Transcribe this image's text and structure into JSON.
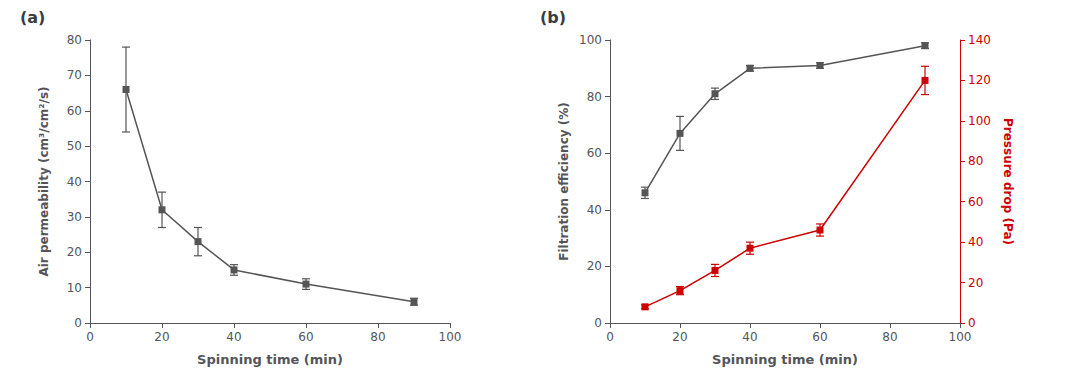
{
  "chart_data": [
    {
      "type": "line",
      "title": "(a)",
      "xlabel": "Spinning time (min)",
      "ylabel": "Air permeability (cm³/cm²/s)",
      "x": [
        10,
        20,
        30,
        40,
        60,
        90
      ],
      "series": [
        {
          "color": "#555555",
          "marker": "square",
          "line_style": "solid",
          "values": [
            66,
            32,
            23,
            15,
            11,
            6
          ],
          "errors": [
            12,
            5,
            4,
            1.5,
            1.5,
            1
          ]
        }
      ],
      "xlim": [
        0,
        100
      ],
      "xticks": [
        0,
        20,
        40,
        60,
        80,
        100
      ],
      "ylim": [
        0,
        80
      ],
      "yticks": [
        0,
        10,
        20,
        30,
        40,
        50,
        60,
        70,
        80
      ],
      "grid": false
    },
    {
      "type": "line",
      "title": "(b)",
      "xlabel": "Spinning time (min)",
      "ylabel": "Filtration efficiency (%)",
      "y2label": "Pressure drop (Pa)",
      "x": [
        10,
        20,
        30,
        40,
        60,
        90
      ],
      "series": [
        {
          "color": "#555555",
          "marker": "square",
          "line_style": "solid",
          "values": [
            46,
            67,
            81,
            90,
            91,
            98
          ],
          "errors": [
            2,
            6,
            2,
            1,
            1,
            1
          ]
        },
        {
          "color": "#cc0000",
          "marker": "square",
          "line_style": "solid",
          "axis": "y2",
          "values": [
            8,
            16,
            26,
            37,
            46,
            120
          ],
          "errors": [
            1,
            2,
            3,
            3,
            3,
            7
          ]
        }
      ],
      "xlim": [
        0,
        100
      ],
      "xticks": [
        0,
        20,
        40,
        60,
        80,
        100
      ],
      "ylim": [
        0,
        100
      ],
      "yticks": [
        0,
        20,
        40,
        60,
        80,
        100
      ],
      "y2lim": [
        0,
        140
      ],
      "y2ticks": [
        0,
        20,
        40,
        60,
        80,
        100,
        120,
        140
      ],
      "grid": false
    }
  ]
}
